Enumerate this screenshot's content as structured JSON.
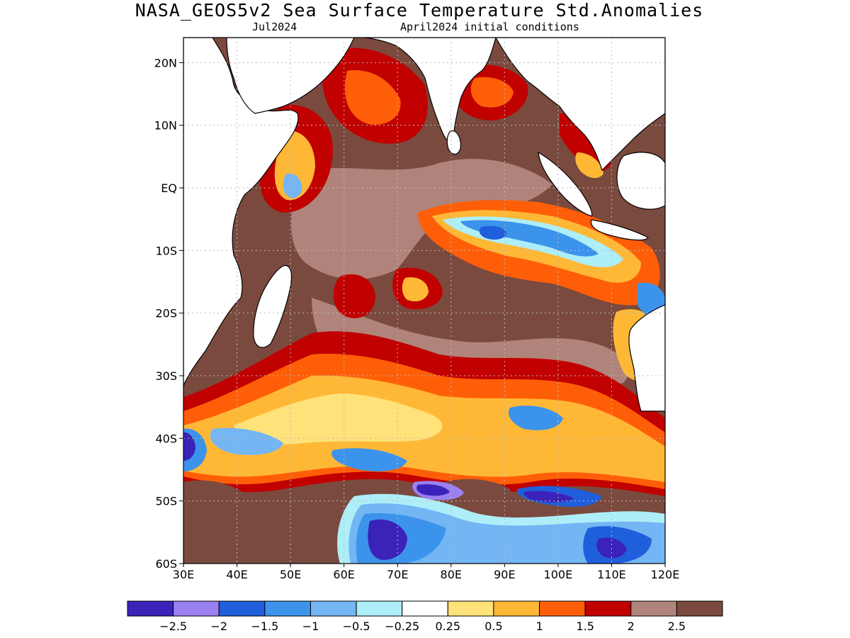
{
  "title": "NASA_GEOS5v2 Sea Surface Temperature Std.Anomalies",
  "subtitle_left": "Jul2024",
  "subtitle_right": "April2024 initial conditions",
  "map": {
    "lon_range": [
      30,
      120
    ],
    "lat_range": [
      -60,
      24
    ],
    "lat_ticks": [
      {
        "value": 20,
        "label": "20N"
      },
      {
        "value": 10,
        "label": "10N"
      },
      {
        "value": 0,
        "label": "EQ"
      },
      {
        "value": -10,
        "label": "10S"
      },
      {
        "value": -20,
        "label": "20S"
      },
      {
        "value": -30,
        "label": "30S"
      },
      {
        "value": -40,
        "label": "40S"
      },
      {
        "value": -50,
        "label": "50S"
      },
      {
        "value": -60,
        "label": "60S"
      }
    ],
    "lon_ticks": [
      {
        "value": 30,
        "label": "30E"
      },
      {
        "value": 40,
        "label": "40E"
      },
      {
        "value": 50,
        "label": "50E"
      },
      {
        "value": 60,
        "label": "60E"
      },
      {
        "value": 70,
        "label": "70E"
      },
      {
        "value": 80,
        "label": "80E"
      },
      {
        "value": 90,
        "label": "90E"
      },
      {
        "value": 100,
        "label": "100E"
      },
      {
        "value": 110,
        "label": "110E"
      },
      {
        "value": 120,
        "label": "120E"
      }
    ],
    "grid": true,
    "grid_style": "dotted",
    "land_color": "#ffffff",
    "coastline_color": "#000000",
    "ocean_base_color": "#7a4a3e",
    "features": [
      {
        "name": "positive-anomaly-belt-south",
        "level": 1
      },
      {
        "name": "cold-anomaly-eastern-tropics",
        "level": -1
      },
      {
        "name": "cold-anomaly-southern-ocean",
        "level": -2.5
      }
    ]
  },
  "legend": {
    "colors": [
      "#3b22b8",
      "#9a80f0",
      "#1f5fdc",
      "#3c93eb",
      "#74b5f4",
      "#aeeef8",
      "#ffffff",
      "#ffe27a",
      "#ffb836",
      "#ff5e08",
      "#c10000",
      "#b0847a",
      "#7a4a3e"
    ],
    "labels": [
      "−2.5",
      "−2",
      "−1.5",
      "−1",
      "−0.5",
      "−0.25",
      "0.25",
      "0.5",
      "1",
      "1.5",
      "2",
      "2.5"
    ]
  }
}
